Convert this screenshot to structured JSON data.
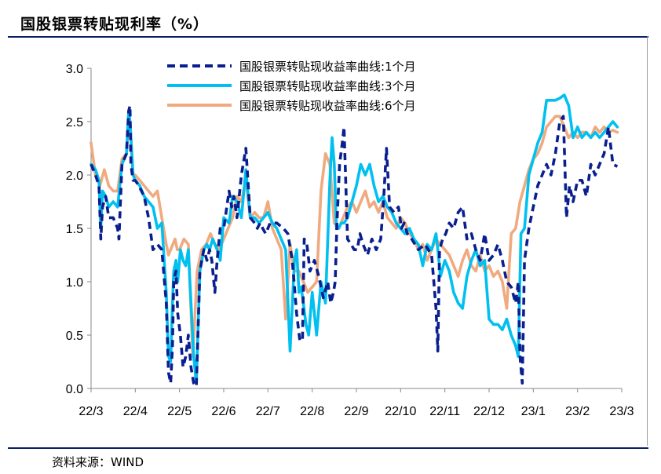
{
  "header": {
    "title": "国股银票转贴现利率（%）"
  },
  "footer": {
    "source": "资料来源：WIND"
  },
  "colors": {
    "s1": "#0a1f8f",
    "s3": "#00c0f0",
    "s6": "#f0aa80",
    "rule": "#0b1f66"
  },
  "chart_data": {
    "type": "line",
    "title": "国股银票转贴现利率（%）",
    "xlabel": "",
    "ylabel": "",
    "ylim": [
      0.0,
      3.0
    ],
    "yticks": [
      "0.0",
      "0.5",
      "1.0",
      "1.5",
      "2.0",
      "2.5",
      "3.0"
    ],
    "xtick_labels": [
      "22/3",
      "22/4",
      "22/5",
      "22/6",
      "22/7",
      "22/8",
      "22/9",
      "22/10",
      "22/11",
      "22/12",
      "23/1",
      "23/2",
      "23/3"
    ],
    "xlim": [
      0,
      12
    ],
    "legend": "top-center",
    "series": [
      {
        "name": "国股银票转贴现收益率曲线:1个月",
        "color": "#0a1f8f",
        "style": "dashed",
        "x": [
          0,
          0.1,
          0.18,
          0.22,
          0.26,
          0.33,
          0.4,
          0.5,
          0.6,
          0.63,
          0.7,
          0.8,
          0.85,
          0.88,
          0.9,
          0.95,
          1.0,
          1.08,
          1.2,
          1.3,
          1.4,
          1.5,
          1.6,
          1.7,
          1.75,
          1.8,
          1.84,
          1.87,
          1.92,
          1.96,
          2.02,
          2.08,
          2.14,
          2.2,
          2.26,
          2.32,
          2.38,
          2.46,
          2.55,
          2.62,
          2.68,
          2.73,
          2.8,
          2.85,
          2.92,
          3.0,
          3.12,
          3.18,
          3.23,
          3.3,
          3.4,
          3.5,
          3.6,
          3.7,
          3.76,
          3.82,
          3.88,
          3.95,
          4.05,
          4.2,
          4.35,
          4.45,
          4.55,
          4.65,
          4.72,
          4.78,
          4.82,
          4.88,
          4.95,
          5.05,
          5.15,
          5.25,
          5.35,
          5.42,
          5.48,
          5.52,
          5.56,
          5.62,
          5.68,
          5.72,
          5.8,
          5.88,
          5.95,
          6.02,
          6.08,
          6.15,
          6.25,
          6.35,
          6.45,
          6.55,
          6.62,
          6.68,
          6.75,
          6.85,
          6.95,
          7.02,
          7.08,
          7.15,
          7.25,
          7.4,
          7.55,
          7.7,
          7.8,
          7.84,
          7.88,
          7.95,
          8.02,
          8.1,
          8.2,
          8.3,
          8.4,
          8.5,
          8.6,
          8.7,
          8.8,
          8.9,
          9.0,
          9.1,
          9.2,
          9.3,
          9.4,
          9.5,
          9.6,
          9.66,
          9.7,
          9.75,
          9.8,
          9.9,
          10.0,
          10.1,
          10.2,
          10.3,
          10.4,
          10.5,
          10.6,
          10.68,
          10.75,
          10.82,
          10.9,
          11.0,
          11.1,
          11.2,
          11.3,
          11.4,
          11.5,
          11.6,
          11.7,
          11.8,
          11.9
        ],
        "y": [
          2.1,
          2.0,
          1.9,
          1.4,
          1.7,
          1.8,
          1.6,
          1.6,
          1.5,
          1.4,
          2.1,
          2.2,
          2.6,
          2.65,
          2.1,
          1.95,
          1.95,
          1.9,
          1.8,
          1.6,
          1.3,
          1.35,
          1.3,
          0.8,
          0.15,
          0.05,
          0.4,
          1.0,
          1.1,
          0.7,
          0.5,
          0.2,
          0.3,
          0.5,
          0.2,
          0.05,
          0.02,
          1.1,
          1.3,
          1.2,
          1.3,
          1.2,
          0.9,
          1.2,
          1.5,
          1.5,
          1.85,
          1.7,
          1.8,
          1.6,
          2.0,
          2.25,
          1.6,
          1.55,
          1.5,
          1.55,
          1.5,
          1.45,
          1.55,
          1.55,
          1.5,
          1.45,
          1.2,
          0.7,
          0.45,
          0.45,
          1.4,
          1.35,
          1.1,
          1.2,
          1.05,
          0.85,
          1.0,
          0.8,
          0.9,
          1.0,
          1.55,
          2.1,
          2.3,
          2.45,
          1.4,
          1.35,
          1.3,
          1.3,
          1.45,
          1.35,
          1.25,
          1.4,
          1.3,
          1.4,
          1.8,
          2.25,
          1.7,
          1.65,
          1.7,
          1.5,
          1.55,
          1.45,
          1.4,
          1.3,
          1.35,
          1.25,
          0.75,
          0.35,
          1.3,
          1.4,
          1.45,
          1.55,
          1.5,
          1.65,
          1.7,
          1.4,
          1.45,
          1.3,
          1.2,
          1.45,
          1.2,
          1.25,
          1.35,
          1.2,
          1.0,
          0.95,
          0.8,
          1.0,
          0.3,
          0.05,
          1.2,
          1.5,
          1.7,
          1.9,
          2.0,
          2.1,
          2.0,
          2.2,
          2.5,
          2.55,
          1.6,
          1.9,
          1.75,
          1.95,
          1.95,
          1.8,
          2.1,
          2.0,
          2.1,
          2.2,
          2.45,
          2.1,
          2.08
        ]
      },
      {
        "name": "国股银票转贴现收益率曲线:3个月",
        "color": "#00c0f0",
        "style": "solid",
        "x": [
          0,
          0.1,
          0.18,
          0.22,
          0.26,
          0.33,
          0.4,
          0.5,
          0.6,
          0.7,
          0.8,
          0.85,
          0.88,
          0.95,
          1.0,
          1.1,
          1.2,
          1.3,
          1.4,
          1.5,
          1.6,
          1.7,
          1.75,
          1.8,
          1.84,
          1.87,
          1.92,
          1.96,
          2.02,
          2.08,
          2.14,
          2.2,
          2.26,
          2.32,
          2.38,
          2.46,
          2.55,
          2.62,
          2.68,
          2.75,
          2.85,
          2.92,
          3.0,
          3.12,
          3.2,
          3.3,
          3.4,
          3.5,
          3.6,
          3.7,
          3.8,
          3.9,
          4.0,
          4.1,
          4.2,
          4.3,
          4.4,
          4.5,
          4.6,
          4.65,
          4.7,
          4.75,
          4.8,
          4.86,
          4.92,
          5.0,
          5.1,
          5.2,
          5.3,
          5.4,
          5.45,
          5.5,
          5.55,
          5.6,
          5.66,
          5.72,
          5.8,
          5.9,
          6.0,
          6.1,
          6.2,
          6.3,
          6.4,
          6.5,
          6.6,
          6.7,
          6.8,
          6.9,
          7.0,
          7.1,
          7.2,
          7.3,
          7.4,
          7.5,
          7.6,
          7.7,
          7.8,
          7.84,
          7.9,
          8.0,
          8.1,
          8.2,
          8.3,
          8.4,
          8.5,
          8.6,
          8.7,
          8.8,
          8.9,
          9.0,
          9.1,
          9.2,
          9.3,
          9.4,
          9.5,
          9.6,
          9.66,
          9.72,
          9.8,
          9.9,
          10.0,
          10.1,
          10.2,
          10.3,
          10.4,
          10.5,
          10.6,
          10.7,
          10.8,
          10.9,
          11.0,
          11.1,
          11.2,
          11.3,
          11.4,
          11.5,
          11.6,
          11.7,
          11.8,
          11.9
        ],
        "y": [
          2.1,
          2.05,
          1.95,
          1.5,
          1.85,
          1.8,
          1.7,
          1.75,
          1.7,
          2.1,
          2.2,
          2.6,
          2.5,
          2.0,
          1.95,
          1.9,
          1.8,
          1.75,
          1.7,
          1.5,
          1.55,
          0.9,
          0.3,
          0.25,
          0.8,
          1.1,
          1.2,
          1.0,
          1.3,
          1.2,
          1.15,
          1.3,
          0.8,
          0.3,
          0.05,
          1.1,
          1.3,
          1.35,
          1.3,
          1.4,
          1.3,
          1.2,
          1.6,
          1.55,
          1.8,
          1.75,
          1.6,
          2.05,
          1.6,
          1.6,
          1.55,
          1.6,
          1.65,
          1.55,
          1.5,
          1.4,
          1.3,
          0.35,
          1.2,
          1.3,
          0.9,
          0.95,
          0.8,
          0.6,
          0.5,
          0.9,
          0.5,
          1.0,
          0.8,
          1.95,
          2.35,
          2.1,
          1.5,
          1.5,
          1.55,
          1.55,
          1.6,
          1.75,
          1.9,
          2.1,
          2.0,
          2.1,
          1.9,
          1.75,
          1.8,
          1.7,
          1.65,
          1.55,
          1.5,
          1.45,
          1.5,
          1.4,
          1.35,
          1.15,
          1.35,
          1.3,
          1.45,
          1.3,
          1.05,
          1.2,
          1.1,
          0.9,
          0.8,
          0.75,
          1.05,
          1.2,
          1.3,
          1.15,
          1.2,
          0.65,
          0.6,
          0.6,
          0.55,
          0.65,
          0.5,
          0.4,
          0.3,
          1.45,
          1.5,
          2.0,
          2.15,
          2.3,
          2.4,
          2.7,
          2.7,
          2.7,
          2.72,
          2.75,
          2.65,
          2.35,
          2.45,
          2.35,
          2.4,
          2.35,
          2.4,
          2.35,
          2.4,
          2.45,
          2.5,
          2.45
        ],
        "note": "values approximate"
      },
      {
        "name": "国股银票转贴现收益率曲线:6个月",
        "color": "#f0aa80",
        "style": "solid",
        "x": [
          0,
          0.1,
          0.2,
          0.3,
          0.4,
          0.5,
          0.6,
          0.7,
          0.8,
          0.85,
          0.88,
          0.95,
          1.0,
          1.1,
          1.2,
          1.3,
          1.4,
          1.5,
          1.6,
          1.7,
          1.75,
          1.8,
          1.85,
          1.9,
          1.95,
          2.0,
          2.1,
          2.2,
          2.3,
          2.4,
          2.5,
          2.6,
          2.7,
          2.8,
          2.9,
          3.0,
          3.1,
          3.2,
          3.3,
          3.4,
          3.5,
          3.6,
          3.7,
          3.8,
          3.9,
          4.0,
          4.1,
          4.2,
          4.3,
          4.4,
          4.5,
          4.6,
          4.7,
          4.8,
          4.9,
          5.0,
          5.1,
          5.2,
          5.3,
          5.4,
          5.5,
          5.6,
          5.7,
          5.8,
          5.9,
          6.0,
          6.1,
          6.2,
          6.3,
          6.4,
          6.5,
          6.6,
          6.7,
          6.8,
          6.9,
          7.0,
          7.1,
          7.2,
          7.3,
          7.4,
          7.5,
          7.6,
          7.7,
          7.8,
          7.9,
          8.0,
          8.1,
          8.2,
          8.3,
          8.4,
          8.5,
          8.6,
          8.7,
          8.8,
          8.9,
          9.0,
          9.1,
          9.2,
          9.3,
          9.4,
          9.5,
          9.6,
          9.7,
          9.8,
          9.9,
          10.0,
          10.1,
          10.2,
          10.3,
          10.4,
          10.5,
          10.6,
          10.7,
          10.8,
          10.9,
          11.0,
          11.1,
          11.2,
          11.3,
          11.4,
          11.5,
          11.6,
          11.7,
          11.8,
          11.9
        ],
        "y": [
          2.3,
          2.0,
          1.9,
          2.05,
          1.9,
          1.85,
          1.85,
          2.15,
          2.2,
          2.55,
          2.5,
          2.0,
          2.0,
          1.95,
          1.9,
          1.85,
          1.8,
          1.85,
          1.6,
          1.35,
          1.25,
          1.3,
          1.35,
          1.4,
          1.3,
          1.3,
          1.4,
          1.35,
          0.3,
          1.1,
          1.3,
          1.35,
          1.45,
          1.35,
          1.3,
          1.4,
          1.5,
          1.6,
          1.8,
          1.75,
          1.95,
          1.6,
          1.65,
          1.6,
          1.6,
          1.75,
          1.5,
          1.4,
          1.3,
          0.65,
          1.35,
          1.1,
          1.1,
          1.0,
          0.9,
          0.95,
          1.0,
          1.85,
          2.2,
          2.1,
          1.55,
          1.5,
          1.6,
          1.7,
          1.75,
          1.65,
          1.75,
          1.85,
          1.7,
          1.75,
          1.65,
          1.75,
          1.6,
          1.55,
          1.5,
          1.6,
          1.55,
          1.45,
          1.4,
          1.3,
          1.35,
          1.2,
          1.3,
          1.4,
          1.35,
          1.3,
          1.25,
          1.15,
          1.05,
          1.2,
          1.3,
          1.15,
          1.1,
          1.25,
          1.1,
          1.15,
          1.05,
          1.1,
          1.0,
          0.75,
          1.45,
          1.5,
          1.75,
          1.9,
          2.05,
          2.15,
          2.2,
          2.3,
          2.45,
          2.5,
          2.55,
          2.55,
          2.45,
          2.35,
          2.4,
          2.35,
          2.4,
          2.4,
          2.35,
          2.45,
          2.4,
          2.45,
          2.4,
          2.42,
          2.4
        ]
      }
    ]
  }
}
